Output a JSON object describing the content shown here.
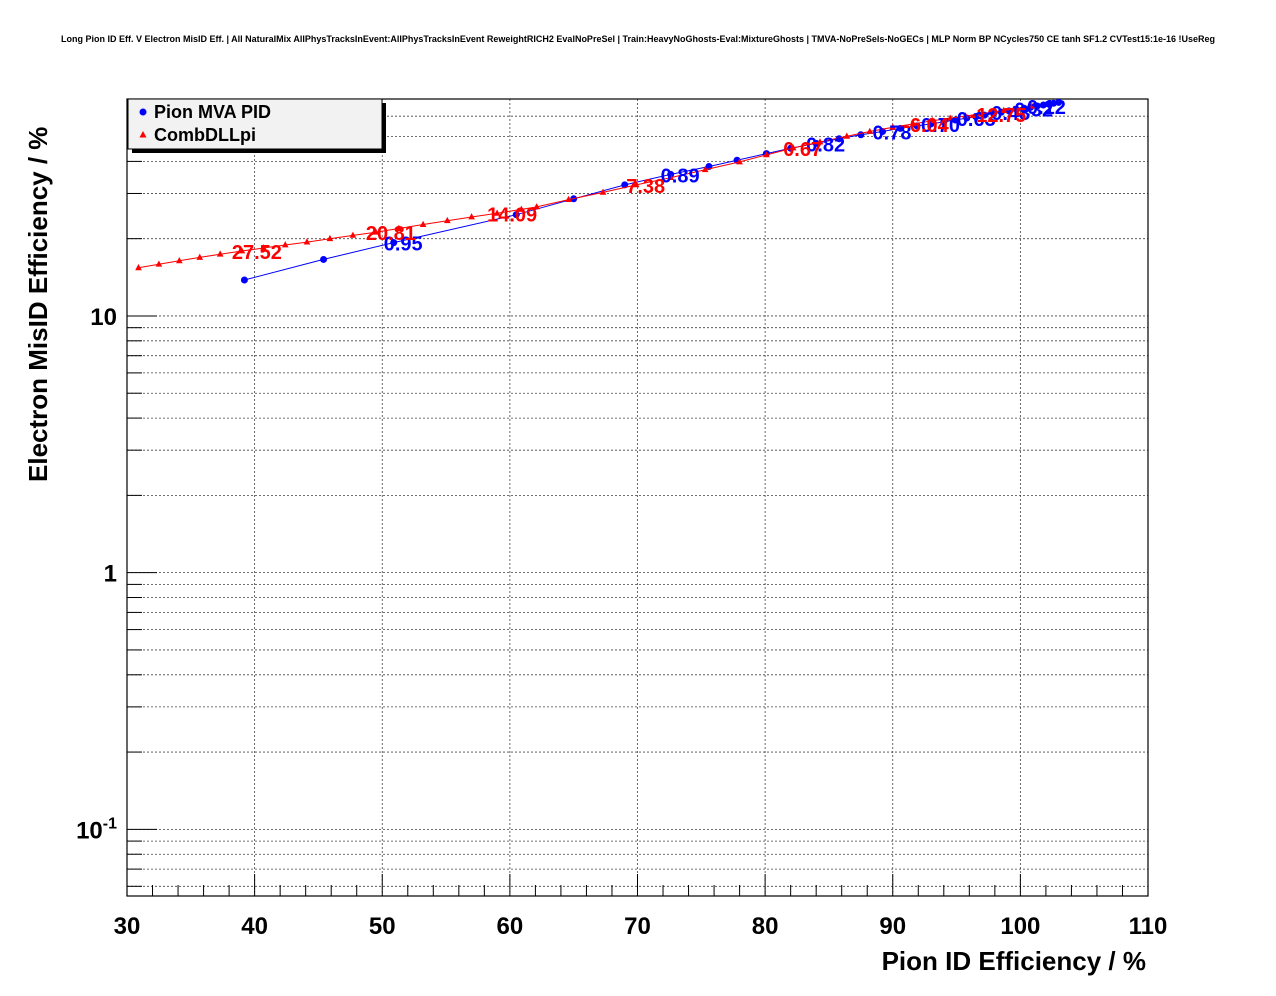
{
  "chart_data": {
    "type": "line",
    "title": "Long Pion ID Eff. V Electron MisID Eff. | All NaturalMix AllPhysTracksInEvent:AllPhysTracksInEvent ReweightRICH2 EvalNoPreSel | Train:HeavyNoGhosts-Eval:MixtureGhosts | TMVA-NoPreSels-NoGECs | MLP Norm BP NCycles750 CE tanh SF1.2 CVTest15:1e-16 !UseReg",
    "xlabel": "Pion ID Efficiency / %",
    "ylabel": "Electron MisID Efficiency / %",
    "xlim": [
      30,
      110
    ],
    "ylim": [
      0.055,
      70
    ],
    "y_scale": "log",
    "grid": true,
    "legend_position": "top-left",
    "x_ticks": [
      30,
      40,
      50,
      60,
      70,
      80,
      90,
      100,
      110
    ],
    "x_tick_labels": [
      "30",
      "40",
      "50",
      "60",
      "70",
      "80",
      "90",
      "100",
      "110"
    ],
    "y_ticks": [
      0.1,
      1,
      10
    ],
    "y_tick_labels": [
      {
        "base": "10",
        "exp": "-1"
      },
      {
        "base": "1",
        "exp": ""
      },
      {
        "base": "10",
        "exp": ""
      }
    ],
    "series": [
      {
        "name": "Pion MVA PID",
        "color": "#0000ff",
        "marker": "circle",
        "x": [
          39.2,
          45.4,
          50.9,
          60.5,
          65.0,
          69.0,
          72.6,
          75.6,
          77.8,
          80.1,
          82.0,
          84.0,
          85.8,
          87.5,
          89.2,
          90.6,
          91.9,
          93.0,
          94.0,
          94.9,
          95.8,
          96.5,
          97.2,
          97.9,
          98.5,
          99.1,
          99.7,
          100.3,
          100.8,
          101.3,
          101.8,
          102.2,
          102.6,
          103.0
        ],
        "y": [
          13.8,
          16.6,
          19.3,
          24.8,
          28.6,
          32.4,
          35.6,
          38.2,
          40.4,
          42.9,
          45.0,
          47.0,
          49.0,
          50.8,
          52.3,
          53.8,
          55.0,
          56.0,
          57.0,
          58.0,
          59.0,
          59.8,
          60.6,
          61.4,
          62.2,
          62.9,
          63.7,
          64.4,
          65.0,
          65.7,
          66.3,
          66.9,
          67.4,
          67.9
        ],
        "labels": [
          {
            "text": "0.95",
            "x": 50.9,
            "y": 19.3
          },
          {
            "text": "0.89",
            "x": 72.6,
            "y": 35.6
          },
          {
            "text": "0.82",
            "x": 84.0,
            "y": 47.0
          },
          {
            "text": "0.78",
            "x": 89.2,
            "y": 52.3
          },
          {
            "text": "0.70",
            "x": 93.0,
            "y": 56.0
          },
          {
            "text": "0.63",
            "x": 95.8,
            "y": 59.0
          },
          {
            "text": "0.48",
            "x": 98.5,
            "y": 62.2
          },
          {
            "text": "0.32",
            "x": 100.3,
            "y": 64.4
          },
          {
            "text": "0.12",
            "x": 101.3,
            "y": 65.7
          }
        ]
      },
      {
        "name": "CombDLLpi",
        "color": "#ff0000",
        "marker": "triangle",
        "x": [
          30.9,
          32.5,
          34.1,
          35.7,
          37.3,
          39.0,
          40.7,
          42.4,
          44.1,
          45.9,
          47.7,
          49.5,
          51.3,
          53.2,
          55.1,
          57.0,
          59.0,
          60.9,
          62.1,
          64.6,
          67.3,
          69.9,
          72.6,
          75.3,
          78.0,
          80.1,
          82.2,
          84.3,
          86.4,
          88.2,
          90.0,
          91.6,
          93.1,
          94.5,
          95.7,
          96.8,
          97.8,
          98.7,
          99.5,
          100.2,
          100.9
        ],
        "y": [
          15.4,
          15.9,
          16.4,
          16.9,
          17.4,
          17.9,
          18.4,
          18.9,
          19.4,
          20.0,
          20.6,
          21.2,
          21.9,
          22.7,
          23.5,
          24.3,
          25.1,
          26.0,
          26.6,
          28.4,
          30.3,
          32.4,
          34.6,
          37.1,
          39.8,
          42.4,
          45.1,
          47.6,
          50.1,
          52.3,
          54.3,
          56.0,
          57.6,
          58.9,
          60.1,
          61.2,
          62.2,
          63.1,
          64.0,
          64.8,
          65.6
        ],
        "labels": [
          {
            "text": "27.52",
            "x": 39.0,
            "y": 17.9
          },
          {
            "text": "20.81",
            "x": 49.5,
            "y": 21.2
          },
          {
            "text": "14.09",
            "x": 59.0,
            "y": 25.1
          },
          {
            "text": "7.38",
            "x": 69.9,
            "y": 32.4
          },
          {
            "text": "0.67",
            "x": 82.2,
            "y": 45.1
          },
          {
            "text": "-6.04",
            "x": 91.6,
            "y": 56.0
          },
          {
            "text": "-12.75",
            "x": 96.8,
            "y": 61.2
          }
        ]
      }
    ]
  }
}
